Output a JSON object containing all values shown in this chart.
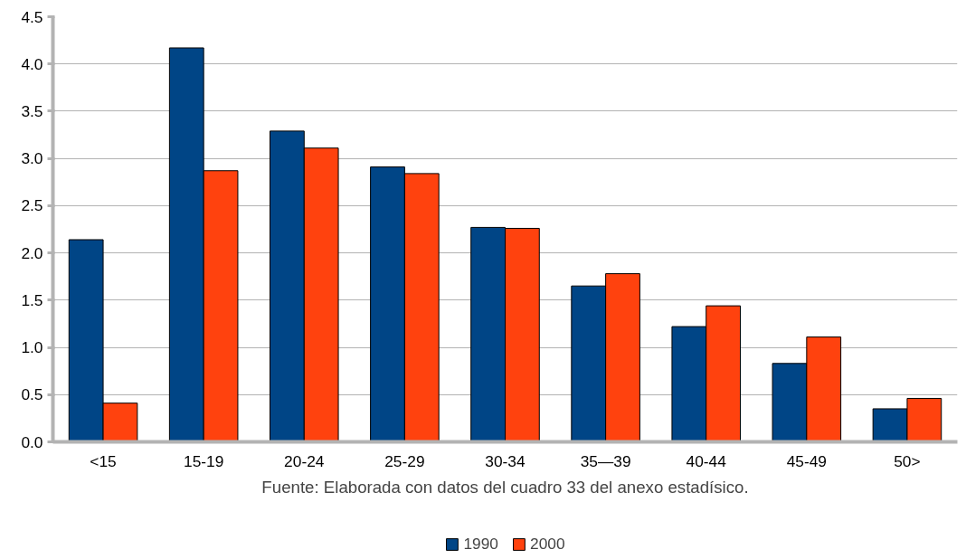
{
  "chart_data": {
    "type": "bar",
    "categories": [
      "<15",
      "15-19",
      "20-24",
      "25-29",
      "30-34",
      "35—39",
      "40-44",
      "45-49",
      "50>"
    ],
    "series": [
      {
        "name": "1990",
        "color": "#004586",
        "values": [
          2.14,
          4.17,
          3.29,
          2.91,
          2.27,
          1.65,
          1.22,
          0.83,
          0.35
        ]
      },
      {
        "name": "2000",
        "color": "#ff420e",
        "values": [
          0.41,
          2.87,
          3.11,
          2.84,
          2.26,
          1.78,
          1.44,
          1.11,
          0.46
        ]
      }
    ],
    "ylim": [
      0,
      4.5
    ],
    "yticks": [
      {
        "value": 0,
        "label": "0.0"
      },
      {
        "value": 0.5,
        "label": "0.5"
      },
      {
        "value": 1,
        "label": "1.0"
      },
      {
        "value": 1.5,
        "label": "1.5"
      },
      {
        "value": 2,
        "label": "2.0"
      },
      {
        "value": 2.5,
        "label": "2.5"
      },
      {
        "value": 3,
        "label": "3.0"
      },
      {
        "value": 3.5,
        "label": "3.5"
      },
      {
        "value": 4,
        "label": "4.0"
      },
      {
        "value": 4.5,
        "label": "4.5"
      }
    ],
    "grid": "y",
    "legend": "bottom",
    "annotations": [
      "Fuente: Elaborada con datos del cuadro 33 del anexo estadísico."
    ]
  }
}
